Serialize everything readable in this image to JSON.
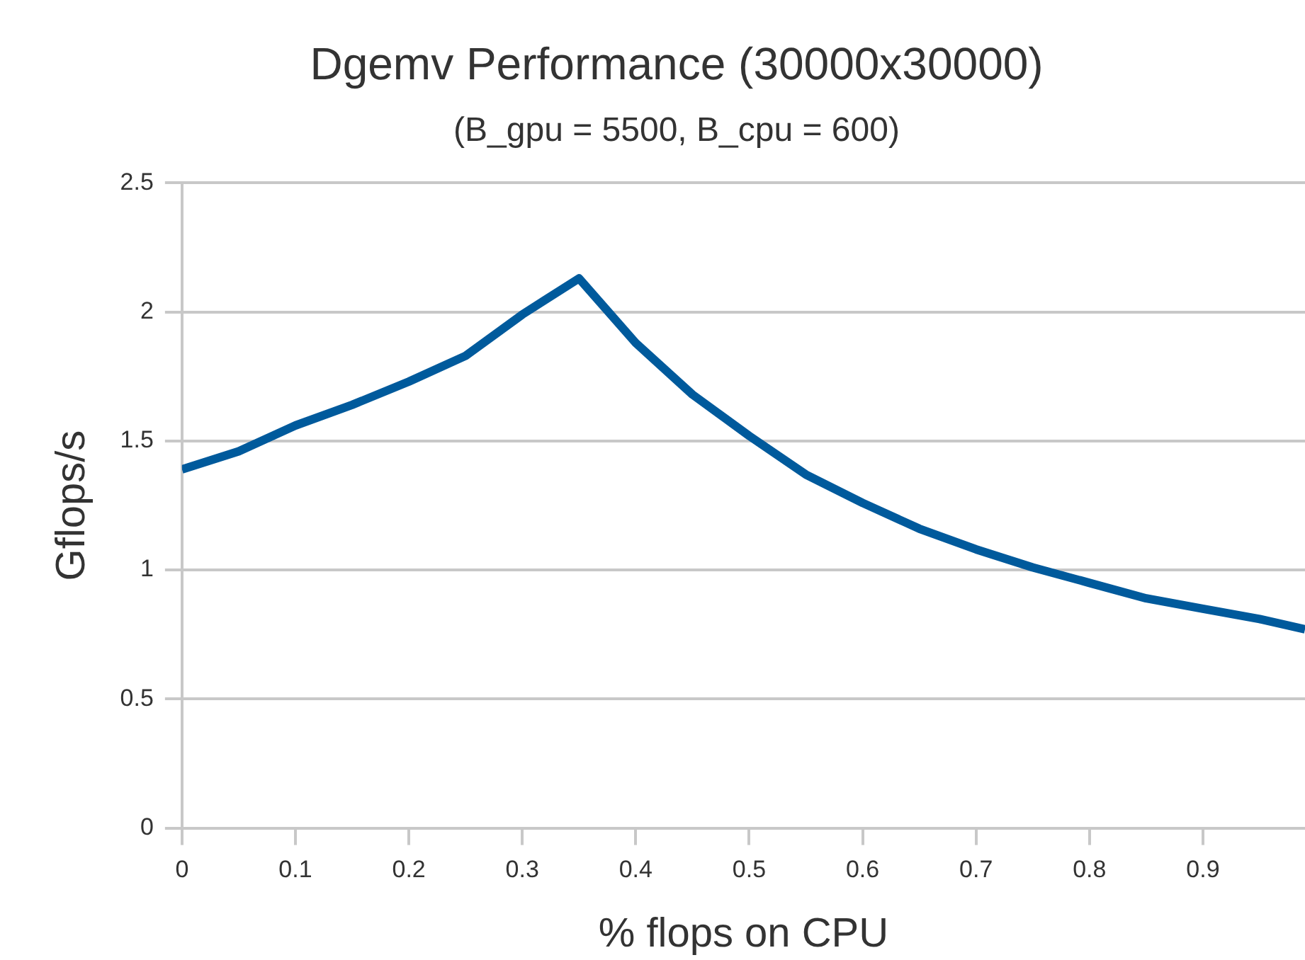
{
  "chart_data": {
    "type": "line",
    "title": "Dgemv Performance (30000x30000)",
    "subtitle": "(B_gpu = 5500, B_cpu = 600)",
    "xlabel": "% flops on CPU",
    "ylabel": "Gflops/s",
    "x": [
      0,
      0.05,
      0.1,
      0.15,
      0.2,
      0.25,
      0.3,
      0.35,
      0.4,
      0.45,
      0.5,
      0.55,
      0.6,
      0.65,
      0.7,
      0.75,
      0.8,
      0.85,
      0.9,
      0.95,
      0.99
    ],
    "series": [
      {
        "color": "#005a9c",
        "values": [
          1.39,
          1.46,
          1.56,
          1.64,
          1.73,
          1.83,
          1.99,
          2.13,
          1.88,
          1.68,
          1.52,
          1.37,
          1.26,
          1.16,
          1.08,
          1.01,
          0.95,
          0.89,
          0.85,
          0.81,
          0.77
        ]
      }
    ],
    "xlim": [
      0,
      0.99
    ],
    "xticks": [
      0,
      0.1,
      0.2,
      0.3,
      0.4,
      0.5,
      0.6,
      0.7,
      0.8,
      0.9
    ],
    "ylim": [
      0,
      2.5
    ],
    "yticks": [
      0,
      0.5,
      1,
      1.5,
      2,
      2.5
    ],
    "grid": "y",
    "legend": false,
    "marker": "none",
    "line_style": "solid"
  }
}
